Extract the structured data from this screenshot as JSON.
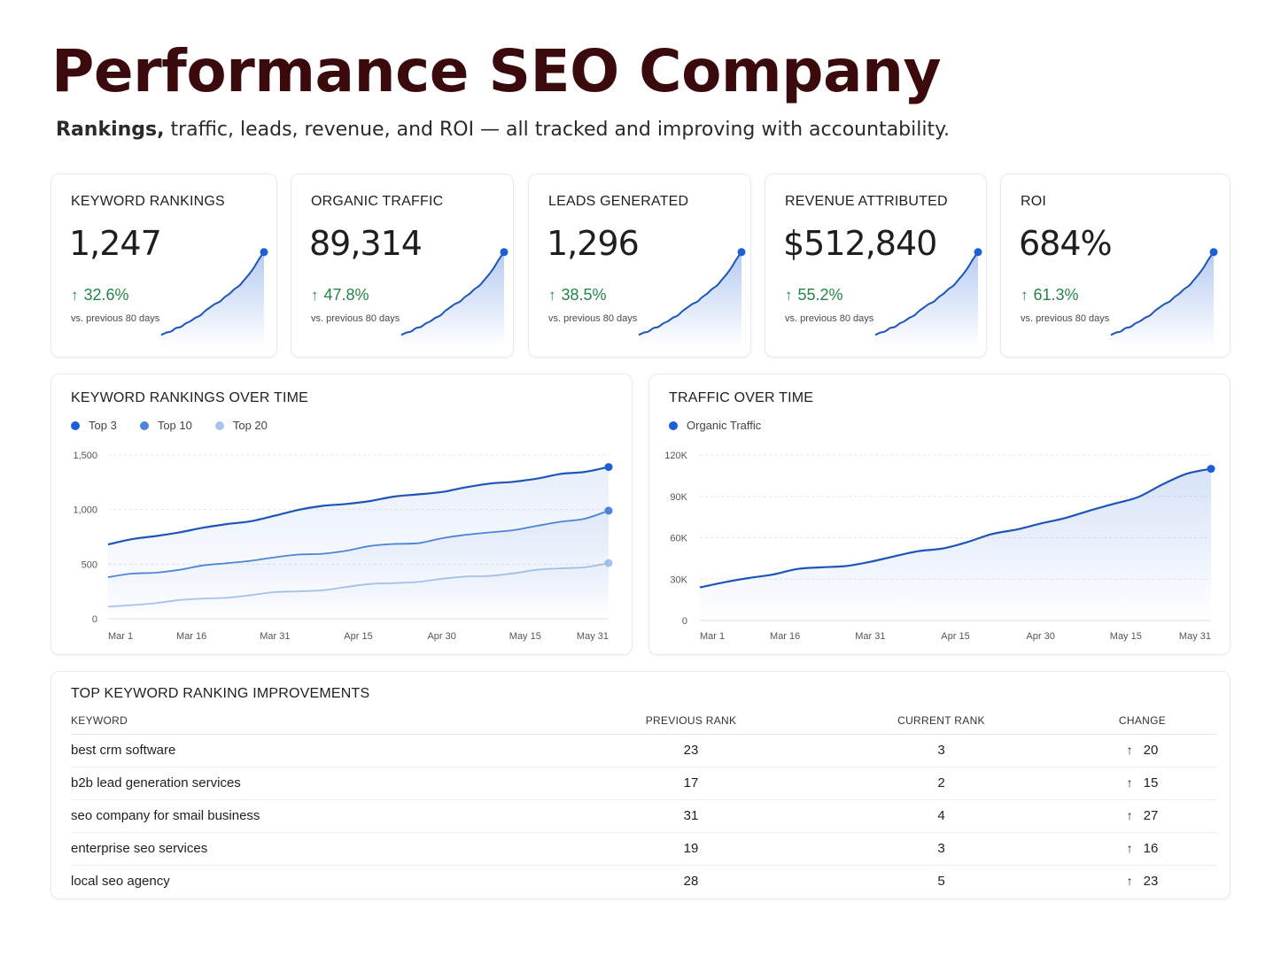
{
  "header": {
    "title": "Performance SEO Company",
    "subtitle_bold": "Rankings,",
    "subtitle_rest": " traffic, leads, revenue, and ROI — all tracked and improving with accountability."
  },
  "colors": {
    "accent": "#1c5fd6",
    "positive": "#23854a",
    "title": "#3b0a0c",
    "series_top3": "#1c5fd6",
    "series_top10": "#4f86d8",
    "series_top20": "#a9c4ec"
  },
  "kpis": [
    {
      "label": "KEYWORD RANKINGS",
      "value": "1,247",
      "delta": "32.6%",
      "delta_icon": "arrow-up-icon",
      "note": "vs. previous 80 days"
    },
    {
      "label": "ORGANIC TRAFFIC",
      "value": "89,314",
      "delta": "47.8%",
      "delta_icon": "arrow-up-icon",
      "note": "vs. previous 80 days"
    },
    {
      "label": "LEADS GENERATED",
      "value": "1,296",
      "delta": "38.5%",
      "delta_icon": "arrow-up-icon",
      "note": "vs. previous 80 days"
    },
    {
      "label": "REVENUE ATTRIBUTED",
      "value": "$512,840",
      "delta": "55.2%",
      "delta_icon": "arrow-up-icon",
      "note": "vs. previous 80 days"
    },
    {
      "label": "ROI",
      "value": "684%",
      "delta": "61.3%",
      "delta_icon": "arrow-up-icon",
      "note": "vs. previous 80 days"
    }
  ],
  "chart_data": [
    {
      "type": "line",
      "title": "KEYWORD RANKINGS OVER TIME",
      "xlabel": "",
      "ylabel": "",
      "x_ticks": [
        "Mar 1",
        "Mar 16",
        "Mar 31",
        "Apr 15",
        "Apr 30",
        "May 15",
        "May 31"
      ],
      "y_ticks": [
        "0",
        "500",
        "1,000",
        "1,500"
      ],
      "ylim": [
        0,
        1500
      ],
      "grid": true,
      "legend": "top-left",
      "series": [
        {
          "name": "Top 3",
          "color": "#1c5fd6",
          "values": [
            680,
            720,
            760,
            800,
            830,
            860,
            900,
            950,
            990,
            1030,
            1060,
            1080,
            1110,
            1140,
            1170,
            1200,
            1230,
            1260,
            1290,
            1320,
            1340,
            1390
          ]
        },
        {
          "name": "Top 10",
          "color": "#4f86d8",
          "values": [
            380,
            410,
            430,
            450,
            480,
            510,
            540,
            560,
            580,
            600,
            630,
            660,
            680,
            700,
            740,
            760,
            790,
            820,
            850,
            880,
            920,
            990
          ]
        },
        {
          "name": "Top 20",
          "color": "#a9c4ec",
          "values": [
            110,
            130,
            150,
            165,
            180,
            200,
            220,
            235,
            250,
            270,
            290,
            310,
            330,
            345,
            360,
            380,
            400,
            420,
            440,
            460,
            480,
            510
          ]
        }
      ]
    },
    {
      "type": "line",
      "title": "TRAFFIC OVER TIME",
      "xlabel": "",
      "ylabel": "",
      "x_ticks": [
        "Mar 1",
        "Mar 16",
        "Mar 31",
        "Apr 15",
        "Apr 30",
        "May 15",
        "May 31"
      ],
      "y_ticks": [
        "0",
        "30K",
        "60K",
        "90K",
        "120K"
      ],
      "ylim": [
        0,
        120000
      ],
      "grid": true,
      "legend": "top-left",
      "series": [
        {
          "name": "Organic Traffic",
          "color": "#1c5fd6",
          "values": [
            24000,
            27000,
            31000,
            34000,
            37000,
            38000,
            40000,
            43000,
            46000,
            50000,
            53000,
            57000,
            62000,
            66000,
            71000,
            74000,
            79000,
            85000,
            90000,
            98000,
            106000,
            110000
          ]
        }
      ]
    }
  ],
  "table": {
    "title": "TOP KEYWORD RANKING IMPROVEMENTS",
    "columns": [
      "KEYWORD",
      "PREVIOUS RANK",
      "CURRENT RANK",
      "CHANGE"
    ],
    "change_icon": "arrow-up-icon",
    "rows": [
      {
        "keyword": "best crm software",
        "previous": "23",
        "current": "3",
        "change": "20"
      },
      {
        "keyword": "b2b lead generation services",
        "previous": "17",
        "current": "2",
        "change": "15"
      },
      {
        "keyword": "seo company for smail business",
        "previous": "31",
        "current": "4",
        "change": "27"
      },
      {
        "keyword": "enterprise seo services",
        "previous": "19",
        "current": "3",
        "change": "16"
      },
      {
        "keyword": "local seo agency",
        "previous": "28",
        "current": "5",
        "change": "23"
      }
    ]
  }
}
